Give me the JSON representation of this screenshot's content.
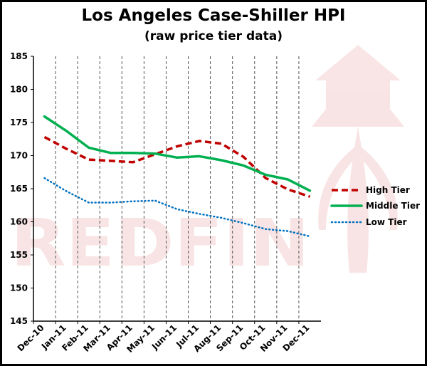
{
  "chart_data": {
    "type": "line",
    "title": "Los Angeles Case-Shiller HPI",
    "subtitle": "(raw price tier data)",
    "categories": [
      "Dec-10",
      "Jan-11",
      "Feb-11",
      "Mar-11",
      "Apr-11",
      "May-11",
      "Jun-11",
      "Jul-11",
      "Aug-11",
      "Sep-11",
      "Oct-11",
      "Nov-11",
      "Dec-11"
    ],
    "y_ticks": [
      "145",
      "150",
      "155",
      "160",
      "165",
      "170",
      "175",
      "180",
      "185"
    ],
    "ylim": [
      145,
      185
    ],
    "grid": "vertical dashed",
    "legend_position": "right",
    "series": [
      {
        "name": "High Tier",
        "color": "#c00000",
        "style": "dashed",
        "values": [
          172.8,
          171.0,
          169.4,
          169.2,
          169.0,
          170.2,
          171.4,
          172.2,
          171.8,
          169.8,
          166.6,
          164.9,
          163.8
        ]
      },
      {
        "name": "Middle Tier",
        "color": "#00b050",
        "style": "solid",
        "values": [
          175.9,
          173.7,
          171.2,
          170.4,
          170.4,
          170.3,
          169.7,
          169.9,
          169.3,
          168.5,
          167.1,
          166.4,
          164.7
        ]
      },
      {
        "name": "Low Tier",
        "color": "#0070c0",
        "style": "dotted",
        "values": [
          166.6,
          164.6,
          162.9,
          162.9,
          163.1,
          163.2,
          161.9,
          161.2,
          160.6,
          159.8,
          158.9,
          158.6,
          157.8
        ]
      }
    ]
  },
  "watermark": {
    "text": "REDFIN",
    "logo": "house-icon"
  }
}
